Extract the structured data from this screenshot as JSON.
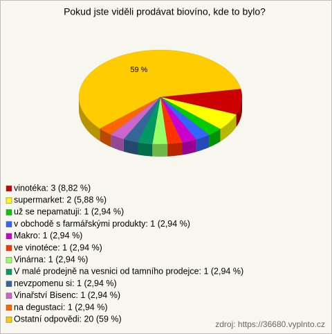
{
  "chart_data": {
    "type": "pie3d",
    "title": "Pokud jste viděli prodávat biovíno, kde to bylo?",
    "categories": [
      "vinotéka: 3 (8,82 %)",
      "supermarket: 2 (5,88 %)",
      "už se nepamatuji: 1 (2,94 %)",
      "v obchodě s farmářskými produkty: 1 (2,94 %)",
      "Makro: 1 (2,94 %)",
      "ve vinotéce: 1 (2,94 %)",
      "Vinárna: 1 (2,94 %)",
      "V malé prodejně na vesnici od tamního prodejce: 1 (2,94 %)",
      "nevzpomenu si: 1 (2,94 %)",
      "Vinařství Bisenc: 1 (2,94 %)",
      "na degustaci: 1 (2,94 %)",
      "Ostatní odpovědi: 20 (59 %)"
    ],
    "values": [
      8.82,
      5.88,
      2.94,
      2.94,
      2.94,
      2.94,
      2.94,
      2.94,
      2.94,
      2.94,
      2.94,
      59
    ],
    "value_labels": [
      null,
      null,
      null,
      null,
      null,
      null,
      null,
      null,
      null,
      null,
      null,
      "59 %"
    ],
    "colors": [
      "#cc0000",
      "#ffff00",
      "#00cc00",
      "#3366ff",
      "#cc00cc",
      "#ff3300",
      "#99ff66",
      "#009966",
      "#336699",
      "#cc66cc",
      "#ff6600",
      "#ffcc00"
    ],
    "source": "zdroj: https://36680.vyplnto.cz"
  }
}
